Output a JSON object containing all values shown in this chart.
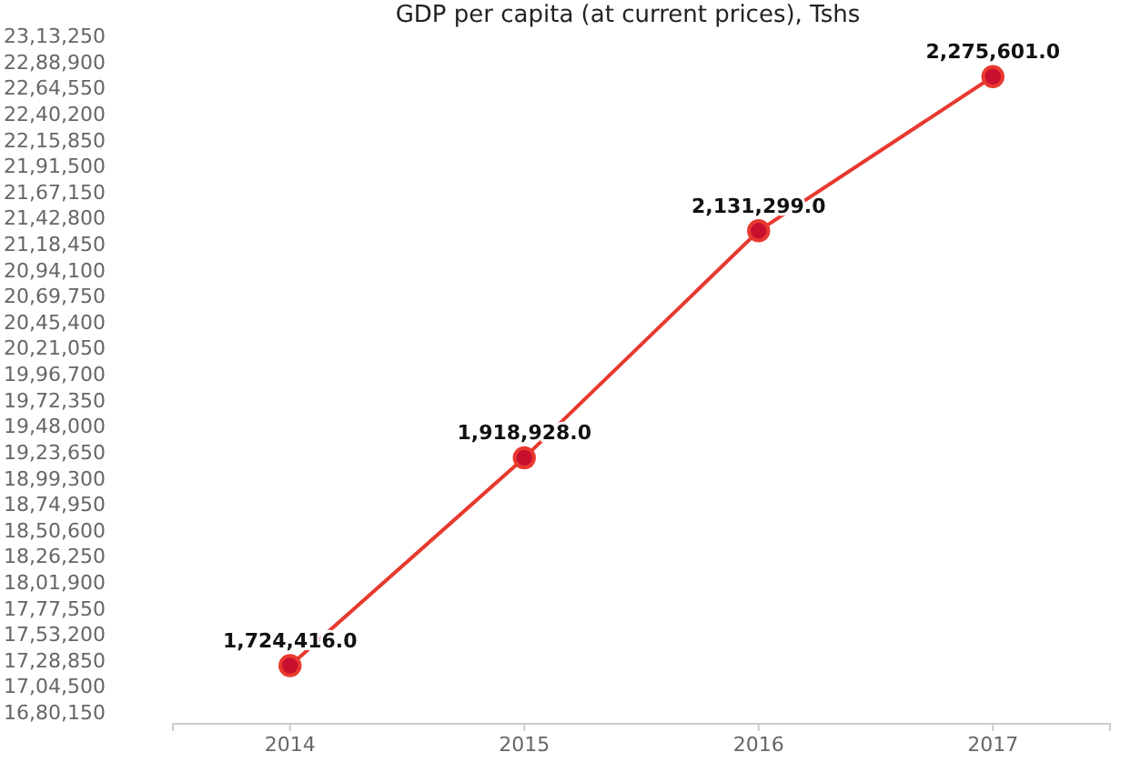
{
  "chart_data": {
    "type": "line",
    "title": "GDP per capita (at current prices), Tshs",
    "categories": [
      "2014",
      "2015",
      "2016",
      "2017"
    ],
    "series": [
      {
        "color": "#e8392f",
        "values": [
          1724416,
          1918928,
          2131299,
          2275601
        ],
        "value_labels": [
          "1,724,416.0",
          "1,918,928.0",
          "2,131,299.0",
          "2,275,601.0"
        ]
      }
    ],
    "ylim": [
      1680150,
      2313250
    ],
    "yticks": [
      {
        "value": 1680150,
        "label": "16,80,150"
      },
      {
        "value": 1704500,
        "label": "17,04,500"
      },
      {
        "value": 1728850,
        "label": "17,28,850"
      },
      {
        "value": 1753200,
        "label": "17,53,200"
      },
      {
        "value": 1777550,
        "label": "17,77,550"
      },
      {
        "value": 1801900,
        "label": "18,01,900"
      },
      {
        "value": 1826250,
        "label": "18,26,250"
      },
      {
        "value": 1850600,
        "label": "18,50,600"
      },
      {
        "value": 1874950,
        "label": "18,74,950"
      },
      {
        "value": 1899300,
        "label": "18,99,300"
      },
      {
        "value": 1923650,
        "label": "19,23,650"
      },
      {
        "value": 1948000,
        "label": "19,48,000"
      },
      {
        "value": 1972350,
        "label": "19,72,350"
      },
      {
        "value": 1996700,
        "label": "19,96,700"
      },
      {
        "value": 2021050,
        "label": "20,21,050"
      },
      {
        "value": 2045400,
        "label": "20,45,400"
      },
      {
        "value": 2069750,
        "label": "20,69,750"
      },
      {
        "value": 2094100,
        "label": "20,94,100"
      },
      {
        "value": 2118450,
        "label": "21,18,450"
      },
      {
        "value": 2142800,
        "label": "21,42,800"
      },
      {
        "value": 2167150,
        "label": "21,67,150"
      },
      {
        "value": 2191500,
        "label": "21,91,500"
      },
      {
        "value": 2215850,
        "label": "22,15,850"
      },
      {
        "value": 2240200,
        "label": "22,40,200"
      },
      {
        "value": 2264550,
        "label": "22,64,550"
      },
      {
        "value": 2288900,
        "label": "22,88,900"
      },
      {
        "value": 2313250,
        "label": "23,13,250"
      }
    ],
    "marker": "circle",
    "line_style": "solid",
    "grid": false
  }
}
